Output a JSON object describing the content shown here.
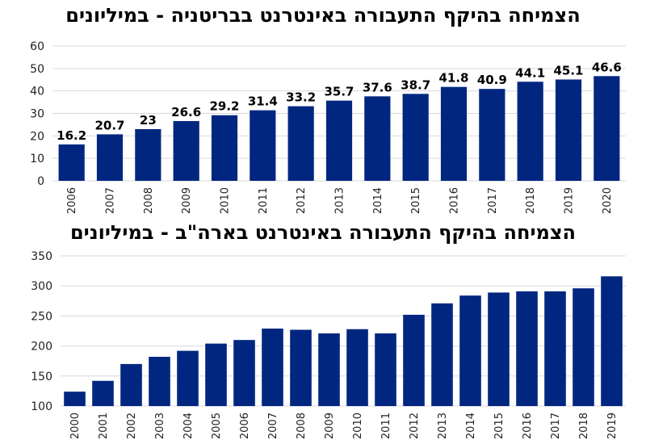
{
  "chart_data": [
    {
      "type": "bar",
      "title": "הצמיחה בהיקף התעבורה באינטרנט בבריטניה - במיליונים",
      "categories": [
        "2006",
        "2007",
        "2008",
        "2009",
        "2010",
        "2011",
        "2012",
        "2013",
        "2014",
        "2015",
        "2016",
        "2017",
        "2018",
        "2019",
        "2020"
      ],
      "values": [
        16.2,
        20.7,
        23,
        26.6,
        29.2,
        31.4,
        33.2,
        35.7,
        37.6,
        38.7,
        41.8,
        40.9,
        44.1,
        45.1,
        46.6
      ],
      "data_labels": [
        "16.2",
        "20.7",
        "23",
        "26.6",
        "29.2",
        "31.4",
        "33.2",
        "35.7",
        "37.6",
        "38.7",
        "41.8",
        "40.9",
        "44.1",
        "45.1",
        "46.6"
      ],
      "ylim": [
        0,
        60
      ],
      "yticks": [
        0,
        10,
        20,
        30,
        40,
        50,
        60
      ],
      "bar_color": "#002680",
      "grid": true
    },
    {
      "type": "bar",
      "title": "הצמיחה בהיקף התעבורה באינטרנט  בארה\"ב - במיליונים",
      "categories": [
        "2000",
        "2001",
        "2002",
        "2003",
        "2004",
        "2005",
        "2006",
        "2007",
        "2008",
        "2009",
        "2010",
        "2011",
        "2012",
        "2013",
        "2014",
        "2015",
        "2016",
        "2017",
        "2018",
        "2019"
      ],
      "values": [
        124,
        142,
        170,
        182,
        192,
        204,
        210,
        229,
        227,
        221,
        228,
        221,
        252,
        271,
        284,
        289,
        291,
        291,
        296,
        316
      ],
      "ylim": [
        100,
        350
      ],
      "yticks": [
        100,
        150,
        200,
        250,
        300,
        350
      ],
      "bar_color": "#002680",
      "grid": true
    }
  ]
}
